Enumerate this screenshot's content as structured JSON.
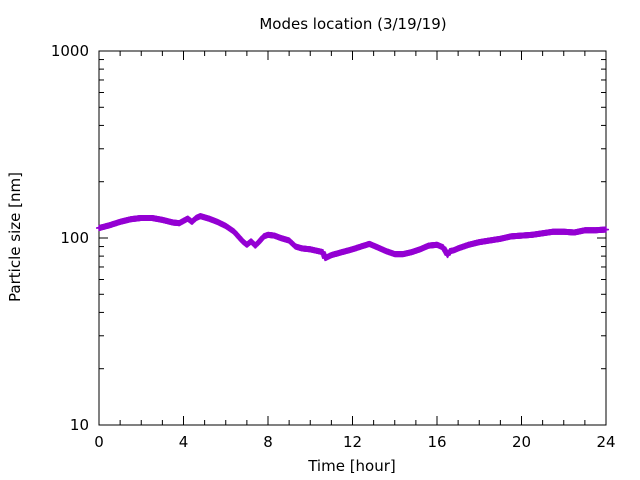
{
  "chart_data": {
    "type": "scatter",
    "title": "Modes location (3/19/19)",
    "xlabel": "Time [hour]",
    "ylabel": "Particle size [nm]",
    "xlim": [
      0,
      24
    ],
    "ylim": [
      10,
      1000
    ],
    "yscale": "log",
    "grid": false,
    "legend": "none",
    "x_ticks": [
      "0",
      "4",
      "8",
      "12",
      "16",
      "20",
      "24"
    ],
    "y_ticks": [
      "10",
      "100",
      "1000"
    ],
    "series": [
      {
        "color": "#9400d3",
        "marker": "plus",
        "x": [
          0.0,
          0.5,
          1.0,
          1.5,
          2.0,
          2.5,
          3.0,
          3.5,
          3.8,
          4.2,
          4.4,
          4.6,
          4.8,
          5.2,
          5.6,
          6.0,
          6.4,
          6.8,
          7.0,
          7.2,
          7.4,
          7.6,
          7.8,
          8.0,
          8.3,
          8.6,
          9.0,
          9.3,
          9.6,
          10.0,
          10.6,
          10.7,
          11.0,
          11.5,
          12.0,
          12.4,
          12.8,
          13.2,
          13.6,
          14.0,
          14.4,
          14.8,
          15.2,
          15.6,
          16.0,
          16.3,
          16.5,
          16.6,
          16.8,
          17.0,
          17.5,
          18.0,
          18.5,
          19.0,
          19.5,
          20.0,
          20.5,
          21.0,
          21.5,
          22.0,
          22.5,
          23.0,
          23.5,
          24.0
        ],
        "y": [
          113,
          117,
          122,
          126,
          128,
          128,
          125,
          121,
          120,
          127,
          122,
          128,
          131,
          127,
          122,
          116,
          108,
          96,
          92,
          96,
          91,
          96,
          102,
          104,
          103,
          100,
          97,
          90,
          88,
          87,
          84,
          78,
          81,
          84,
          87,
          90,
          93,
          89,
          85,
          82,
          82,
          84,
          87,
          91,
          92,
          89,
          81,
          85,
          86,
          88,
          92,
          95,
          97,
          99,
          102,
          103,
          104,
          106,
          108,
          108,
          107,
          110,
          110,
          111
        ]
      }
    ]
  }
}
